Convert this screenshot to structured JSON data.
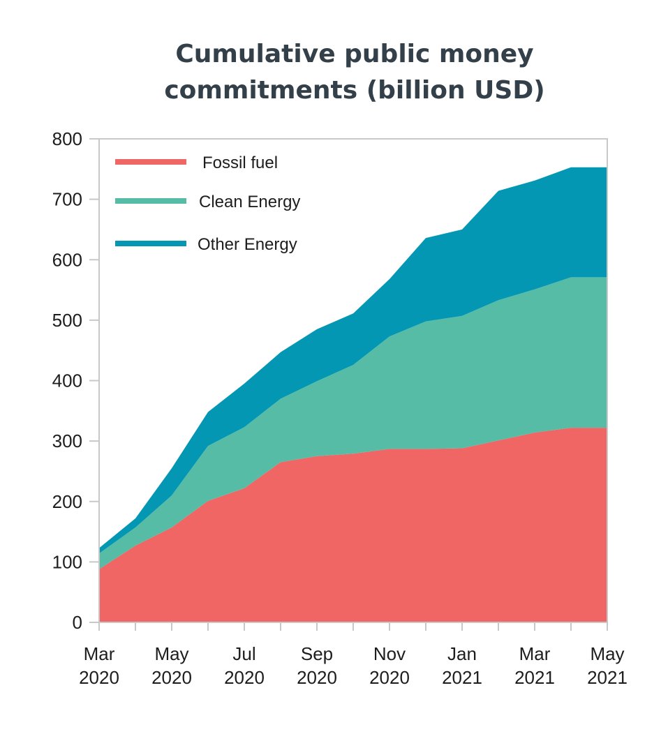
{
  "chart_data": {
    "type": "area",
    "stacked": true,
    "title_line1": "Cumulative public money",
    "title_line2": "commitments (billion USD)",
    "xlabel": "",
    "ylabel": "",
    "x": [
      "Mar 2020",
      "Apr 2020",
      "May 2020",
      "Jun 2020",
      "Jul 2020",
      "Aug 2020",
      "Sep 2020",
      "Oct 2020",
      "Nov 2020",
      "Dec 2020",
      "Jan 2021",
      "Feb 2021",
      "Mar 2021",
      "Apr 2021",
      "May 2021"
    ],
    "x_tick_labels": [
      {
        "month": "Mar",
        "year": "2020"
      },
      {
        "month": "May",
        "year": "2020"
      },
      {
        "month": "Jul",
        "year": "2020"
      },
      {
        "month": "Sep",
        "year": "2020"
      },
      {
        "month": "Nov",
        "year": "2020"
      },
      {
        "month": "Jan",
        "year": "2021"
      },
      {
        "month": "Mar",
        "year": "2021"
      },
      {
        "month": "May",
        "year": "2021"
      }
    ],
    "ylim": [
      0,
      800
    ],
    "y_ticks": [
      0,
      100,
      200,
      300,
      400,
      500,
      600,
      700,
      800
    ],
    "grid": false,
    "legend_position": "top-left",
    "series": [
      {
        "name": "Fossil fuel",
        "color": "#EF6664",
        "values": [
          88,
          127,
          157,
          201,
          222,
          265,
          275,
          279,
          287,
          287,
          288,
          301,
          314,
          322,
          322
        ]
      },
      {
        "name": "Clean Energy",
        "color": "#56BCA6",
        "values": [
          26,
          30,
          53,
          91,
          101,
          105,
          124,
          147,
          186,
          211,
          219,
          232,
          237,
          249,
          249
        ]
      },
      {
        "name": "Other Energy",
        "color": "#0397B3",
        "values": [
          9,
          15,
          45,
          56,
          72,
          77,
          86,
          85,
          95,
          138,
          143,
          181,
          180,
          182,
          182
        ]
      }
    ]
  }
}
